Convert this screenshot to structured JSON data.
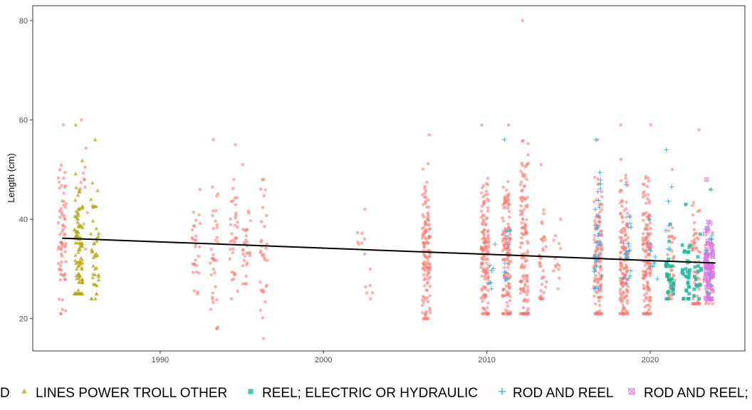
{
  "chart_data": {
    "type": "scatter",
    "title": "",
    "xlabel": "",
    "ylabel": "Length (cm)",
    "xlim": [
      1982.2,
      2025.8
    ],
    "ylim": [
      13.5,
      83
    ],
    "xticks": [
      1990,
      2000,
      2010,
      2020
    ],
    "xtick_labels": [
      "1990",
      "2000",
      "2010",
      "2020"
    ],
    "yticks": [
      20,
      40,
      60,
      80
    ],
    "ytick_labels": [
      "20",
      "40",
      "60",
      "80"
    ],
    "grid": false,
    "legend_position": "bottom",
    "trend_line": {
      "x": [
        1984,
        2024
      ],
      "y": [
        36.2,
        31.2
      ],
      "color": "#000000"
    },
    "series": [
      {
        "name": "D",
        "color": "#F8766D",
        "shape": "circle",
        "clusters": [
          {
            "x": 1984.0,
            "ymin": 21,
            "ymax": 59,
            "center": 36,
            "n": 70
          },
          {
            "x": 1985.3,
            "ymin": 34,
            "ymax": 60,
            "center": 44,
            "n": 14
          },
          {
            "x": 1992.2,
            "ymin": 25,
            "ymax": 46,
            "center": 35,
            "n": 28
          },
          {
            "x": 1993.3,
            "ymin": 18,
            "ymax": 56,
            "center": 33,
            "n": 35
          },
          {
            "x": 1994.5,
            "ymin": 24,
            "ymax": 55,
            "center": 34,
            "n": 35
          },
          {
            "x": 1995.3,
            "ymin": 27,
            "ymax": 51,
            "center": 36,
            "n": 30
          },
          {
            "x": 1996.3,
            "ymin": 16,
            "ymax": 48,
            "center": 34,
            "n": 32
          },
          {
            "x": 2002.3,
            "ymin": 33,
            "ymax": 42,
            "center": 36,
            "n": 8
          },
          {
            "x": 2002.8,
            "ymin": 24,
            "ymax": 30,
            "center": 26,
            "n": 6
          },
          {
            "x": 2006.3,
            "ymin": 20,
            "ymax": 57,
            "center": 33,
            "n": 130
          },
          {
            "x": 2009.9,
            "ymin": 21,
            "ymax": 59,
            "center": 33,
            "n": 140
          },
          {
            "x": 2011.2,
            "ymin": 21,
            "ymax": 59,
            "center": 32,
            "n": 140
          },
          {
            "x": 2012.3,
            "ymin": 21,
            "ymax": 80,
            "center": 32,
            "n": 140
          },
          {
            "x": 2013.4,
            "ymin": 24,
            "ymax": 51,
            "center": 31,
            "n": 40
          },
          {
            "x": 2014.3,
            "ymin": 26,
            "ymax": 40,
            "center": 32,
            "n": 14
          },
          {
            "x": 2016.8,
            "ymin": 21,
            "ymax": 56,
            "center": 33,
            "n": 130
          },
          {
            "x": 2018.4,
            "ymin": 21,
            "ymax": 59,
            "center": 32,
            "n": 150
          },
          {
            "x": 2019.8,
            "ymin": 21,
            "ymax": 59,
            "center": 32,
            "n": 150
          },
          {
            "x": 2021.3,
            "ymin": 24,
            "ymax": 50,
            "center": 30,
            "n": 40
          },
          {
            "x": 2022.8,
            "ymin": 23,
            "ymax": 58,
            "center": 30,
            "n": 60
          },
          {
            "x": 2023.6,
            "ymin": 23,
            "ymax": 46,
            "center": 30,
            "n": 40
          }
        ]
      },
      {
        "name": "LINES POWER TROLL OTHER",
        "color": "#B1A80E",
        "shape": "triangle",
        "clusters": [
          {
            "x": 1985.0,
            "ymin": 25,
            "ymax": 59,
            "center": 33,
            "n": 110
          },
          {
            "x": 1986.0,
            "ymin": 24,
            "ymax": 56,
            "center": 33,
            "n": 45
          }
        ]
      },
      {
        "name": "REEL; ELECTRIC OR HYDRAULIC",
        "color": "#1BB69A",
        "shape": "square",
        "clusters": [
          {
            "x": 2021.2,
            "ymin": 24,
            "ymax": 39,
            "center": 29,
            "n": 30
          },
          {
            "x": 2022.2,
            "ymin": 24,
            "ymax": 43,
            "center": 29,
            "n": 35
          },
          {
            "x": 2022.9,
            "ymin": 24,
            "ymax": 37,
            "center": 29,
            "n": 15
          }
        ]
      },
      {
        "name": "ROD AND REEL",
        "color": "#35A9DE",
        "shape": "plus",
        "clusters": [
          {
            "x": 2010.3,
            "ymin": 26,
            "ymax": 35,
            "center": 30,
            "n": 8
          },
          {
            "x": 2011.3,
            "ymin": 28,
            "ymax": 56,
            "center": 35,
            "n": 10
          },
          {
            "x": 2016.8,
            "ymin": 26,
            "ymax": 56,
            "center": 38,
            "n": 30
          },
          {
            "x": 2018.6,
            "ymin": 27,
            "ymax": 47,
            "center": 35,
            "n": 20
          },
          {
            "x": 2020.2,
            "ymin": 28,
            "ymax": 40,
            "center": 34,
            "n": 10
          },
          {
            "x": 2021.2,
            "ymin": 34,
            "ymax": 54,
            "center": 40,
            "n": 8
          },
          {
            "x": 2023.6,
            "ymin": 24,
            "ymax": 46,
            "center": 32,
            "n": 35
          }
        ]
      },
      {
        "name": "ROD AND REEL;",
        "color": "#E36FE5",
        "shape": "square-x",
        "clusters": [
          {
            "x": 2023.6,
            "ymin": 24,
            "ymax": 48,
            "center": 31,
            "n": 55
          }
        ]
      }
    ]
  }
}
